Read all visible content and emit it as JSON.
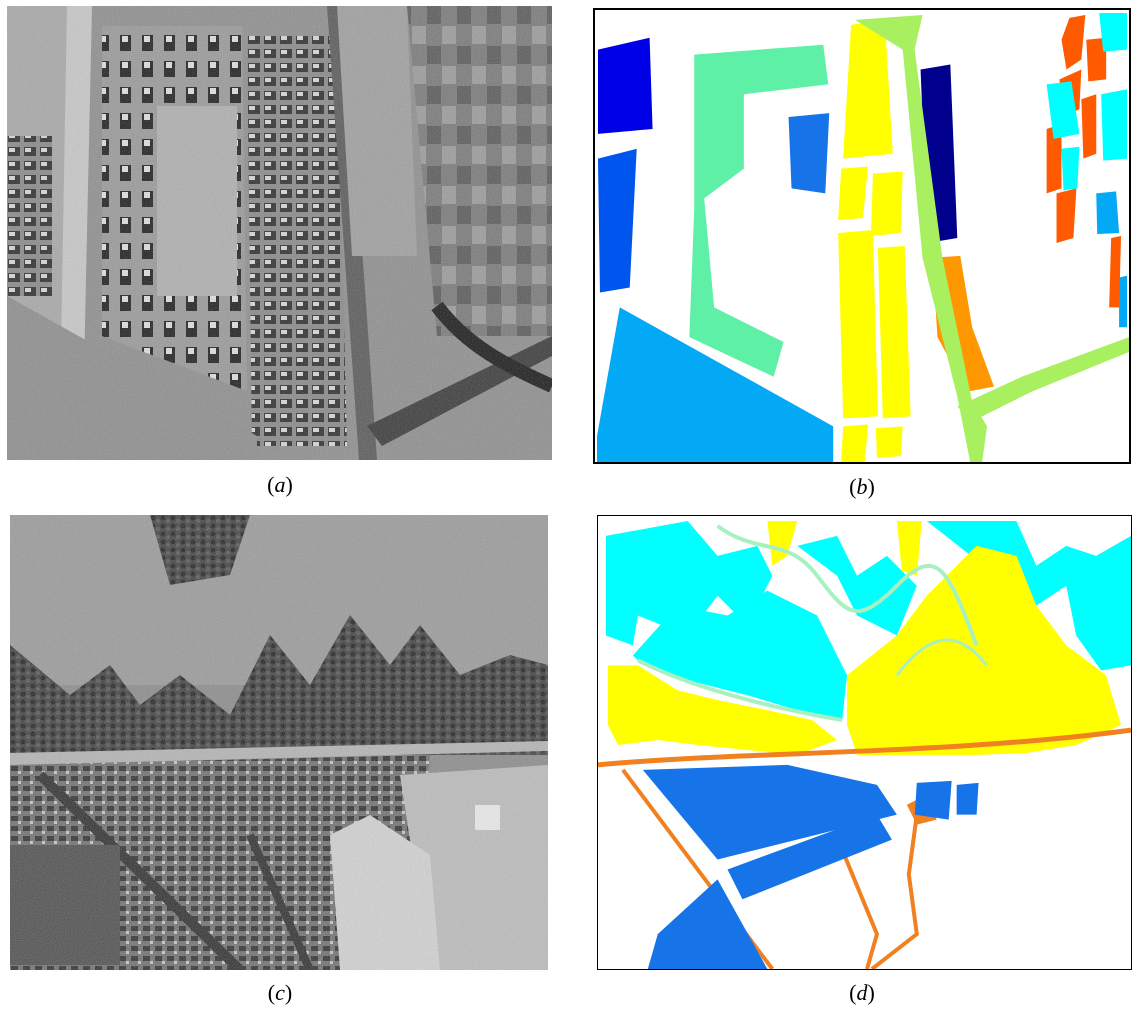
{
  "figure": {
    "panels": [
      {
        "id": "a",
        "caption_open": "(",
        "caption_letter": "a",
        "caption_close": ")"
      },
      {
        "id": "b",
        "caption_open": "(",
        "caption_letter": "b",
        "caption_close": ")"
      },
      {
        "id": "c",
        "caption_open": "(",
        "caption_letter": "c",
        "caption_close": ")"
      },
      {
        "id": "d",
        "caption_open": "(",
        "caption_letter": "d",
        "caption_close": ")"
      }
    ]
  },
  "colors": {
    "blue": "#0000e6",
    "navy": "#00008c",
    "royal_blue": "#0055ee",
    "dodger_blue": "#1673e8",
    "sky_blue": "#03a9f4",
    "aquamarine": "#5ff0a8",
    "yellow": "#ffff00",
    "light_green": "#a8f060",
    "orange": "#ff9800",
    "red_orange": "#ff5a00",
    "cyan": "#00ffff",
    "road_orange": "#f08020"
  }
}
